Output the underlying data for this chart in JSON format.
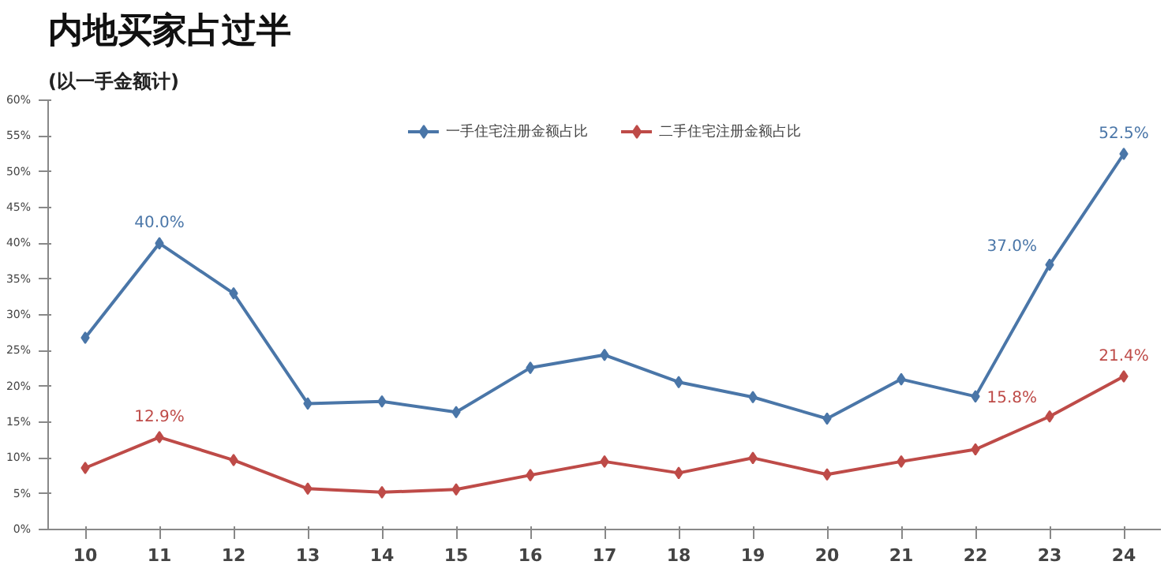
{
  "chart_data": {
    "type": "line",
    "title": "内地买家占过半",
    "subtitle": "(以一手金额计)",
    "categories": [
      "10",
      "11",
      "12",
      "13",
      "14",
      "15",
      "16",
      "17",
      "18",
      "19",
      "20",
      "21",
      "22",
      "23",
      "24"
    ],
    "series": [
      {
        "name": "一手住宅注册金额占比",
        "color": "#4a76a8",
        "values": [
          26.8,
          40.0,
          33.0,
          17.6,
          17.9,
          16.4,
          22.6,
          24.4,
          20.6,
          18.5,
          15.5,
          21.0,
          18.6,
          37.0,
          52.5
        ],
        "value_labels": [
          null,
          "40.0%",
          null,
          null,
          null,
          null,
          null,
          null,
          null,
          null,
          null,
          null,
          null,
          "37.0%",
          "52.5%"
        ]
      },
      {
        "name": "二手住宅注册金额占比",
        "color": "#be4b48",
        "values": [
          8.6,
          12.9,
          9.7,
          5.7,
          5.2,
          5.6,
          7.6,
          9.5,
          7.9,
          10.0,
          7.7,
          9.5,
          11.2,
          15.8,
          21.4
        ],
        "value_labels": [
          null,
          "12.9%",
          null,
          null,
          null,
          null,
          null,
          null,
          null,
          null,
          null,
          null,
          null,
          "15.8%",
          "21.4%"
        ]
      }
    ],
    "ylim": [
      0,
      60
    ],
    "yticks": [
      {
        "value": 0,
        "label": "0%"
      },
      {
        "value": 5,
        "label": "5%"
      },
      {
        "value": 10,
        "label": "10%"
      },
      {
        "value": 15,
        "label": "15%"
      },
      {
        "value": 20,
        "label": "20%"
      },
      {
        "value": 25,
        "label": "25%"
      },
      {
        "value": 30,
        "label": "30%"
      },
      {
        "value": 35,
        "label": "35%"
      },
      {
        "value": 40,
        "label": "40%"
      },
      {
        "value": 45,
        "label": "45%"
      },
      {
        "value": 50,
        "label": "50%"
      },
      {
        "value": 55,
        "label": "55%"
      },
      {
        "value": 60,
        "label": "60%"
      }
    ],
    "grid": false,
    "legend": "top",
    "marker": "diamond",
    "line_style": "solid"
  }
}
